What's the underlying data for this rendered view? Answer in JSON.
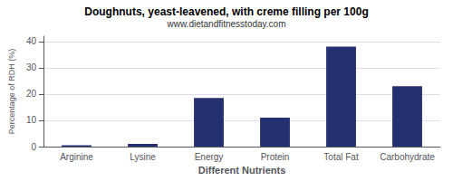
{
  "chart_data": {
    "type": "bar",
    "title": "Doughnuts, yeast-leavened, with creme filling per 100g",
    "subtitle": "www.dietandfitnesstoday.com",
    "xlabel": "Different Nutrients",
    "ylabel": "Percentage of RDH (%)",
    "categories": [
      "Arginine",
      "Lysine",
      "Energy",
      "Protein",
      "Total Fat",
      "Carbohydrate"
    ],
    "values": [
      0.5,
      1.0,
      18.5,
      11.0,
      38.0,
      23.0
    ],
    "color": "#253070",
    "ylim": [
      0,
      42
    ],
    "yticks": [
      0,
      10,
      20,
      30,
      40
    ],
    "grid": true
  }
}
